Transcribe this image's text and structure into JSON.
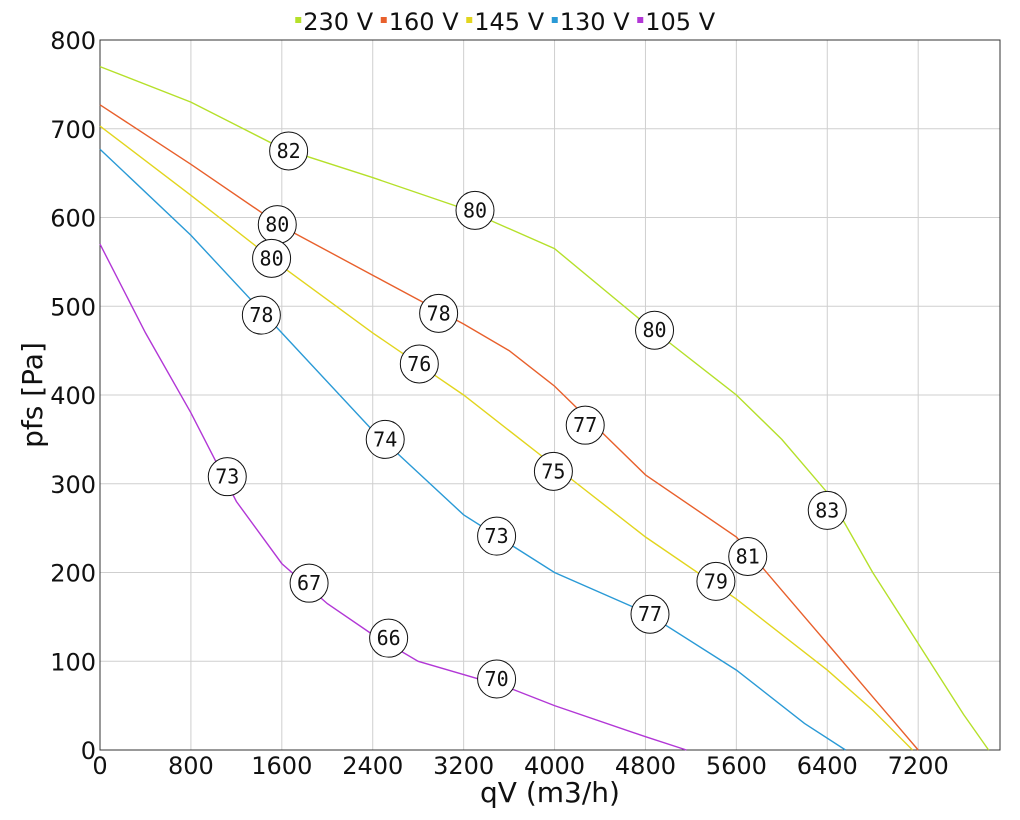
{
  "chart_data": {
    "type": "line",
    "title": "",
    "xlabel": "qV (m3/h)",
    "ylabel": "pfs [Pa]",
    "xlim": [
      0,
      7920
    ],
    "ylim": [
      0,
      800
    ],
    "x_ticks": [
      0,
      800,
      1600,
      2400,
      3200,
      4000,
      4800,
      5600,
      6400,
      7200
    ],
    "y_ticks": [
      0,
      100,
      200,
      300,
      400,
      500,
      600,
      700,
      800
    ],
    "grid": true,
    "legend_position": "top",
    "series": [
      {
        "name": "230 V",
        "color": "#b5e02a",
        "points": [
          [
            0,
            770
          ],
          [
            800,
            730
          ],
          [
            1600,
            678
          ],
          [
            2400,
            645
          ],
          [
            3200,
            610
          ],
          [
            4000,
            565
          ],
          [
            4800,
            480
          ],
          [
            5600,
            400
          ],
          [
            6000,
            350
          ],
          [
            6400,
            290
          ],
          [
            6800,
            200
          ],
          [
            7200,
            120
          ],
          [
            7600,
            40
          ],
          [
            7820,
            0
          ]
        ],
        "callouts": [
          {
            "x": 1660,
            "y": 675,
            "label": "82"
          },
          {
            "x": 3300,
            "y": 608,
            "label": "80"
          },
          {
            "x": 4880,
            "y": 473,
            "label": "80"
          },
          {
            "x": 6400,
            "y": 270,
            "label": "83"
          }
        ]
      },
      {
        "name": "160 V",
        "color": "#e8602c",
        "points": [
          [
            0,
            727
          ],
          [
            800,
            660
          ],
          [
            1600,
            590
          ],
          [
            2400,
            535
          ],
          [
            3200,
            480
          ],
          [
            3600,
            450
          ],
          [
            4000,
            410
          ],
          [
            4800,
            310
          ],
          [
            5600,
            240
          ],
          [
            6000,
            180
          ],
          [
            6400,
            120
          ],
          [
            6800,
            60
          ],
          [
            7200,
            0
          ]
        ],
        "callouts": [
          {
            "x": 1560,
            "y": 592,
            "label": "80"
          },
          {
            "x": 2980,
            "y": 492,
            "label": "78"
          },
          {
            "x": 4270,
            "y": 366,
            "label": "77"
          },
          {
            "x": 5700,
            "y": 218,
            "label": "81"
          }
        ]
      },
      {
        "name": "145 V",
        "color": "#e2d51e",
        "points": [
          [
            0,
            703
          ],
          [
            800,
            625
          ],
          [
            1600,
            545
          ],
          [
            2400,
            470
          ],
          [
            3200,
            400
          ],
          [
            4000,
            320
          ],
          [
            4800,
            240
          ],
          [
            5600,
            170
          ],
          [
            6000,
            130
          ],
          [
            6400,
            90
          ],
          [
            6800,
            45
          ],
          [
            7150,
            0
          ]
        ],
        "callouts": [
          {
            "x": 1510,
            "y": 554,
            "label": "80"
          },
          {
            "x": 2810,
            "y": 435,
            "label": "76"
          },
          {
            "x": 3990,
            "y": 314,
            "label": "75"
          },
          {
            "x": 5420,
            "y": 190,
            "label": "79"
          }
        ]
      },
      {
        "name": "130 V",
        "color": "#2a9ad6",
        "points": [
          [
            0,
            677
          ],
          [
            800,
            580
          ],
          [
            1600,
            470
          ],
          [
            2400,
            360
          ],
          [
            3200,
            265
          ],
          [
            4000,
            200
          ],
          [
            4800,
            155
          ],
          [
            5600,
            90
          ],
          [
            6200,
            30
          ],
          [
            6560,
            0
          ]
        ],
        "callouts": [
          {
            "x": 1420,
            "y": 490,
            "label": "78"
          },
          {
            "x": 2510,
            "y": 350,
            "label": "74"
          },
          {
            "x": 3490,
            "y": 241,
            "label": "73"
          },
          {
            "x": 4840,
            "y": 153,
            "label": "77"
          }
        ]
      },
      {
        "name": "105 V",
        "color": "#b237d6",
        "points": [
          [
            0,
            570
          ],
          [
            400,
            470
          ],
          [
            800,
            380
          ],
          [
            1200,
            280
          ],
          [
            1600,
            210
          ],
          [
            2000,
            165
          ],
          [
            2400,
            130
          ],
          [
            2800,
            100
          ],
          [
            3200,
            85
          ],
          [
            3600,
            70
          ],
          [
            4000,
            50
          ],
          [
            4800,
            15
          ],
          [
            5160,
            0
          ]
        ],
        "callouts": [
          {
            "x": 1120,
            "y": 308,
            "label": "73"
          },
          {
            "x": 1840,
            "y": 188,
            "label": "67"
          },
          {
            "x": 2540,
            "y": 126,
            "label": "66"
          },
          {
            "x": 3490,
            "y": 80,
            "label": "70"
          }
        ]
      }
    ]
  }
}
